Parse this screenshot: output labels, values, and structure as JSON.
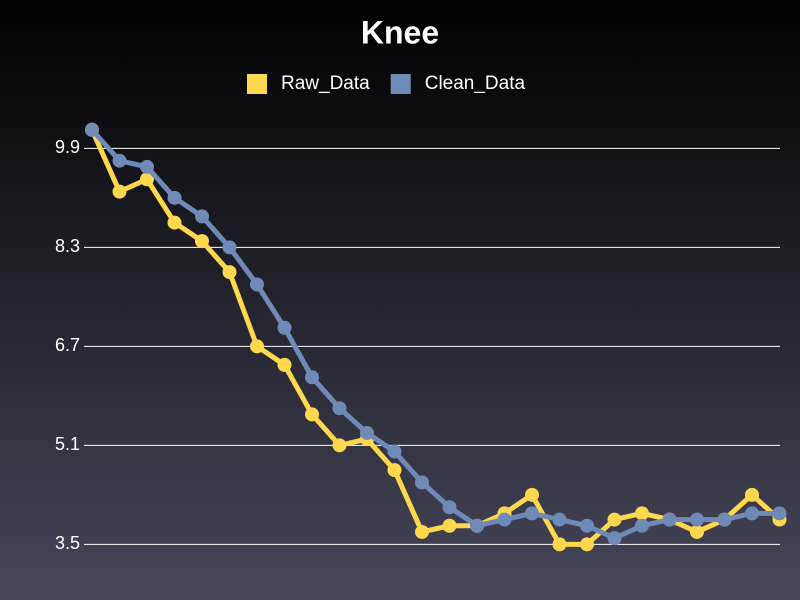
{
  "chart_data": {
    "type": "line",
    "title": "Knee",
    "categories": [
      null,
      null,
      null,
      null,
      null,
      null,
      null,
      null,
      null,
      null,
      null,
      null,
      null,
      null,
      null,
      null,
      null,
      null,
      null,
      null,
      null,
      null,
      null,
      null,
      null,
      null
    ],
    "series": [
      {
        "name": "Raw_Data",
        "color": "#fdd84e",
        "values": [
          10.2,
          9.2,
          9.4,
          8.7,
          8.4,
          7.9,
          6.7,
          6.4,
          5.6,
          5.1,
          5.2,
          4.7,
          3.7,
          3.8,
          3.8,
          4.0,
          4.3,
          3.5,
          3.5,
          3.9,
          4.0,
          3.9,
          3.7,
          3.9,
          4.3,
          3.9
        ]
      },
      {
        "name": "Clean_Data",
        "color": "#6f8ab7",
        "values": [
          10.2,
          9.7,
          9.6,
          9.1,
          8.8,
          8.3,
          7.7,
          7.0,
          6.2,
          5.7,
          5.3,
          5.0,
          4.5,
          4.1,
          3.8,
          3.9,
          4.0,
          3.9,
          3.8,
          3.6,
          3.8,
          3.9,
          3.9,
          3.9,
          4.0,
          4.0
        ]
      }
    ],
    "ylim": [
      2.6,
      10.6
    ],
    "yticks": [
      3.5,
      5.1,
      6.7,
      8.3,
      9.9
    ],
    "grid": true,
    "legend": "top"
  }
}
